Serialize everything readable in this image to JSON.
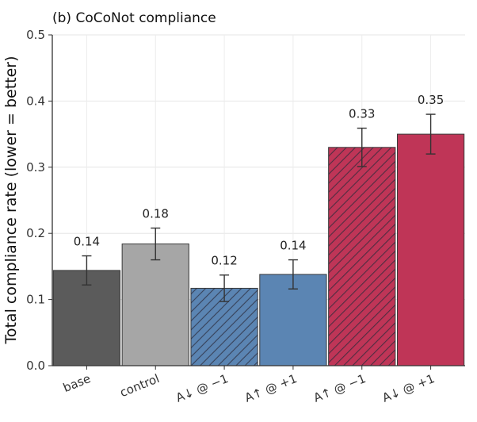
{
  "chart_data": {
    "type": "bar",
    "title": "(b) CoCoNot compliance",
    "xlabel": "",
    "ylabel": "Total compliance rate (lower = better)",
    "ylim": [
      0,
      0.5
    ],
    "yticks": [
      "0.0",
      "0.1",
      "0.2",
      "0.3",
      "0.4",
      "0.5"
    ],
    "grid": true,
    "categories": [
      "base",
      "control",
      "A↓ @ −1",
      "A↑ @ +1",
      "A↑ @ −1",
      "A↓ @ +1"
    ],
    "values": [
      0.144,
      0.184,
      0.117,
      0.138,
      0.33,
      0.35
    ],
    "error": [
      0.022,
      0.024,
      0.02,
      0.022,
      0.029,
      0.03
    ],
    "labels": [
      "0.14",
      "0.18",
      "0.12",
      "0.14",
      "0.33",
      "0.35"
    ],
    "colors": [
      "#5b5b5b",
      "#a6a6a6",
      "#5b85b3",
      "#5b85b3",
      "#bf3557",
      "#bf3557"
    ],
    "hatched": [
      false,
      false,
      true,
      false,
      true,
      false
    ]
  }
}
